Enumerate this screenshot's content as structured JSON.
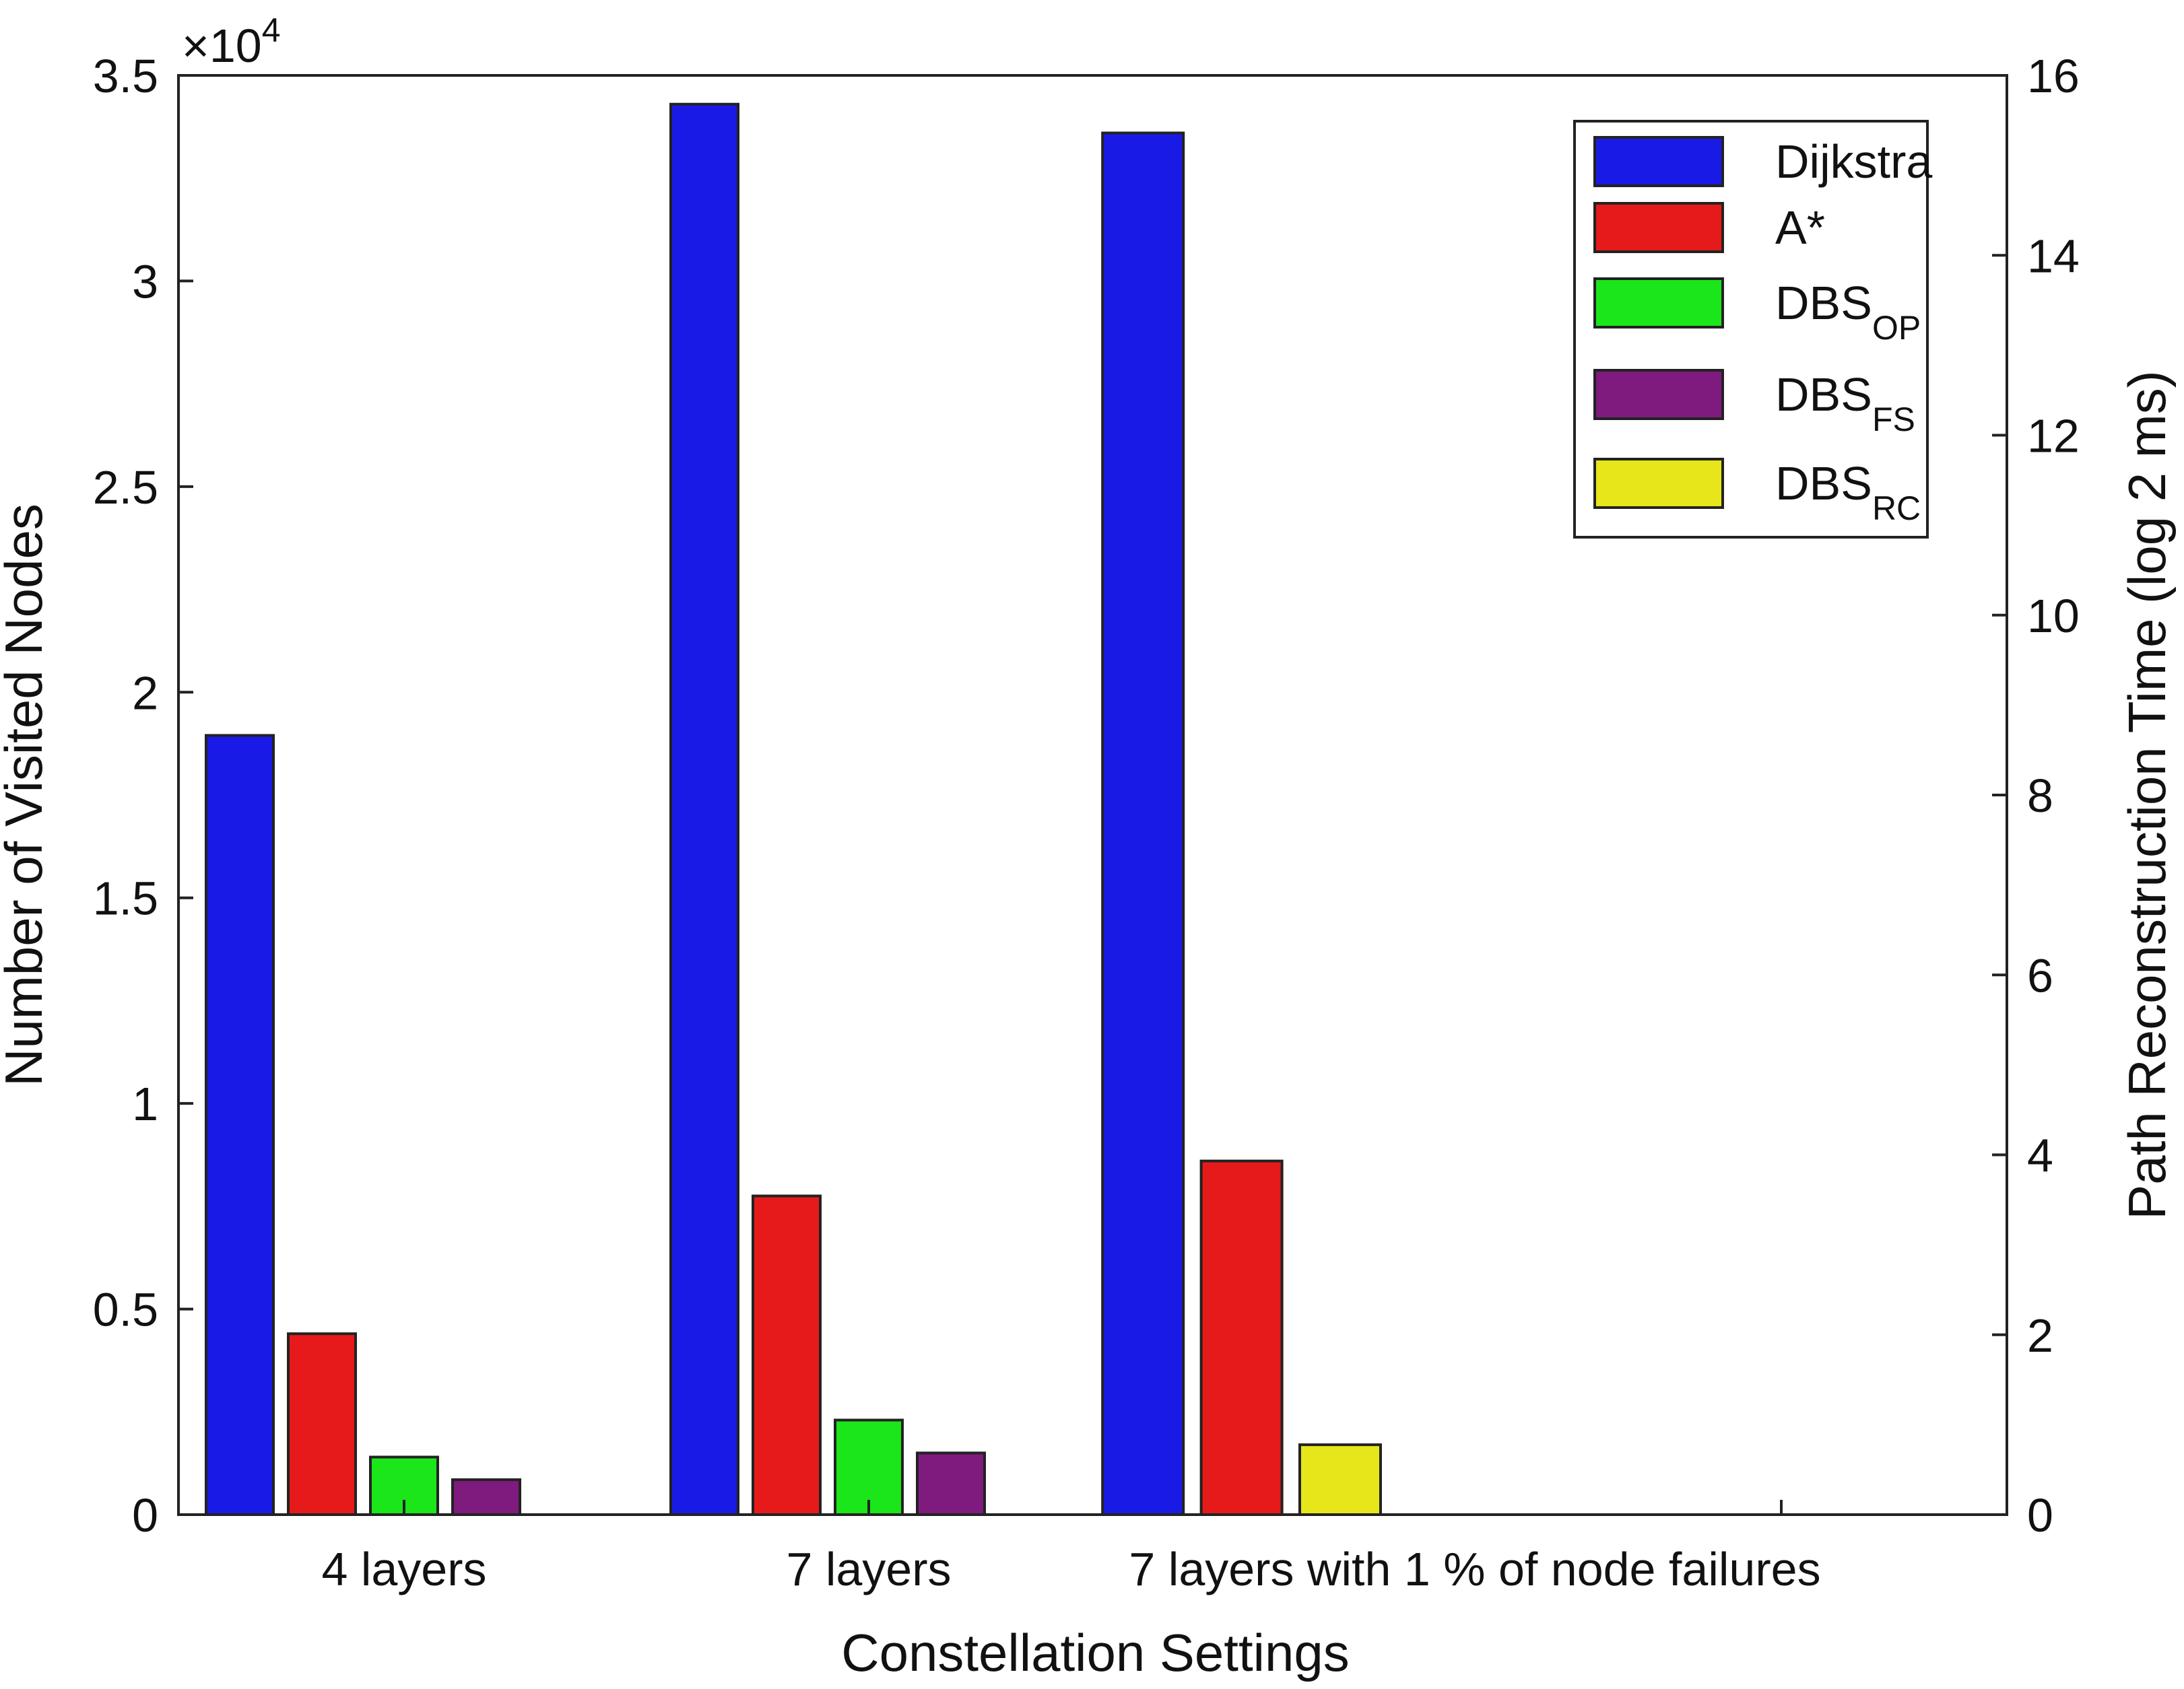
{
  "chart_data": {
    "type": "bar",
    "categories": [
      "4 layers",
      "7 layers",
      "7 layers with 1 % of node failures"
    ],
    "xlabel": "Constellation Settings",
    "ylabel_left": "Number of Visited Nodes",
    "ylabel_right": "Path Reconstruction Time (log 2 ms)",
    "y_exponent_label": "×10",
    "y_exponent_power": "4",
    "ylim_left": [
      0,
      35000
    ],
    "ylim_right": [
      0,
      16
    ],
    "yticks_left": [
      {
        "value": 0,
        "label": "0"
      },
      {
        "value": 5000,
        "label": "0.5"
      },
      {
        "value": 10000,
        "label": "1"
      },
      {
        "value": 15000,
        "label": "1.5"
      },
      {
        "value": 20000,
        "label": "2"
      },
      {
        "value": 25000,
        "label": "2.5"
      },
      {
        "value": 30000,
        "label": "3"
      },
      {
        "value": 35000,
        "label": "3.5"
      }
    ],
    "yticks_right": [
      {
        "value": 0,
        "label": "0"
      },
      {
        "value": 2,
        "label": "2"
      },
      {
        "value": 4,
        "label": "4"
      },
      {
        "value": 6,
        "label": "6"
      },
      {
        "value": 8,
        "label": "8"
      },
      {
        "value": 10,
        "label": "10"
      },
      {
        "value": 12,
        "label": "12"
      },
      {
        "value": 14,
        "label": "14"
      },
      {
        "value": 16,
        "label": "16"
      }
    ],
    "series": [
      {
        "name": "Dijkstra",
        "name_main": "Dijkstra",
        "name_sub": "",
        "color": "#1a1ae6",
        "values": [
          18950,
          34300,
          33600
        ]
      },
      {
        "name": "A*",
        "name_main": "A*",
        "name_sub": "",
        "color": "#e61a1a",
        "values": [
          4400,
          7750,
          8600
        ]
      },
      {
        "name": "DBS_OP",
        "name_main": "DBS",
        "name_sub": "OP",
        "color": "#1ae61a",
        "values": [
          1400,
          2300,
          null
        ]
      },
      {
        "name": "DBS_FS",
        "name_main": "DBS",
        "name_sub": "FS",
        "color": "#7f1a7f",
        "values": [
          850,
          1500,
          null
        ]
      },
      {
        "name": "DBS_RC",
        "name_main": "DBS",
        "name_sub": "RC",
        "color": "#e6e61a",
        "values": [
          null,
          null,
          1700
        ]
      }
    ],
    "legend_position": "top-right",
    "grid": false
  }
}
